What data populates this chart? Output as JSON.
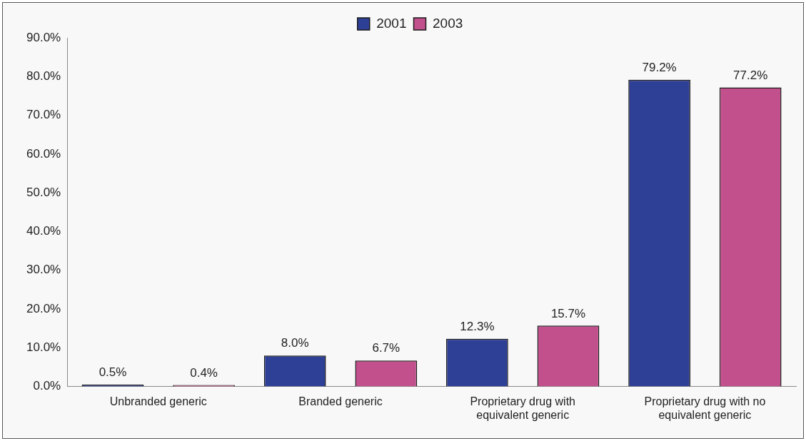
{
  "chart_data": {
    "type": "bar",
    "categories": [
      "Unbranded generic",
      "Branded generic",
      "Proprietary drug with equivalent generic",
      "Proprietary drug with no equivalent generic"
    ],
    "series": [
      {
        "name": "2001",
        "color": "#2e3f96",
        "values": [
          0.5,
          8.0,
          12.3,
          79.2
        ],
        "value_labels": [
          "0.5%",
          "8.0%",
          "12.3%",
          "79.2%"
        ]
      },
      {
        "name": "2003",
        "color": "#c2508c",
        "values": [
          0.4,
          6.7,
          15.7,
          77.2
        ],
        "value_labels": [
          "0.4%",
          "6.7%",
          "15.7%",
          "77.2%"
        ]
      }
    ],
    "ylim": [
      0,
      90
    ],
    "yticks": [
      {
        "value": 0,
        "label": "0.0%"
      },
      {
        "value": 10,
        "label": "10.0%"
      },
      {
        "value": 20,
        "label": "20.0%"
      },
      {
        "value": 30,
        "label": "30.0%"
      },
      {
        "value": 40,
        "label": "40.0%"
      },
      {
        "value": 50,
        "label": "50.0%"
      },
      {
        "value": 60,
        "label": "60.0%"
      },
      {
        "value": 70,
        "label": "70.0%"
      },
      {
        "value": 80,
        "label": "80.0%"
      },
      {
        "value": 90,
        "label": "90.0%"
      }
    ],
    "legend": "top",
    "grid": false
  }
}
